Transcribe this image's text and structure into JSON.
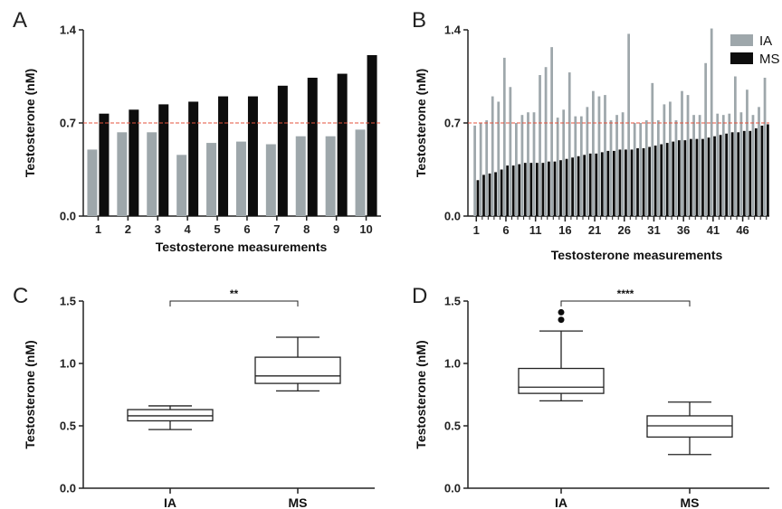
{
  "colors": {
    "ia": "#9ea7ab",
    "ms": "#0d0d0d",
    "ref": "#e5533d",
    "axis": "#222222"
  },
  "chart_data": [
    {
      "panel": "A",
      "type": "bar",
      "xlabel": "Testosterone measurements",
      "ylabel": "Testosterone (nM)",
      "ylim": [
        0,
        1.4
      ],
      "yticks": [
        "0.0",
        "0.7",
        "1.4"
      ],
      "reference_line": 0.7,
      "categories": [
        "1",
        "2",
        "3",
        "4",
        "5",
        "6",
        "7",
        "8",
        "9",
        "10"
      ],
      "series": [
        {
          "name": "IA",
          "values": [
            0.5,
            0.63,
            0.63,
            0.46,
            0.55,
            0.56,
            0.54,
            0.6,
            0.6,
            0.65
          ]
        },
        {
          "name": "MS",
          "values": [
            0.77,
            0.8,
            0.84,
            0.86,
            0.9,
            0.9,
            0.98,
            1.04,
            1.07,
            1.21
          ]
        }
      ]
    },
    {
      "panel": "B",
      "type": "bar",
      "xlabel": "Testosterone measurements",
      "ylabel": "Testosterone (nM)",
      "ylim": [
        0,
        1.4
      ],
      "yticks": [
        "0.0",
        "0.7",
        "1.4"
      ],
      "xticks": [
        "1",
        "6",
        "11",
        "16",
        "21",
        "26",
        "31",
        "36",
        "41",
        "46"
      ],
      "reference_line": 0.7,
      "legend": "top-right",
      "series": [
        {
          "name": "IA",
          "values": [
            0.68,
            0.7,
            0.72,
            0.9,
            0.86,
            1.19,
            0.97,
            0.7,
            0.76,
            0.78,
            0.78,
            1.06,
            1.12,
            1.27,
            0.74,
            0.8,
            1.08,
            0.75,
            0.75,
            0.82,
            0.94,
            0.9,
            0.91,
            0.72,
            0.76,
            0.78,
            1.37,
            0.7,
            0.7,
            0.72,
            1.0,
            0.72,
            0.84,
            0.86,
            0.72,
            0.94,
            0.91,
            0.76,
            0.76,
            1.15,
            1.41,
            0.77,
            0.76,
            0.77,
            1.05,
            0.78,
            0.95,
            0.76,
            0.82,
            1.04
          ]
        },
        {
          "name": "MS",
          "values": [
            0.27,
            0.31,
            0.32,
            0.33,
            0.35,
            0.38,
            0.38,
            0.39,
            0.4,
            0.4,
            0.4,
            0.4,
            0.41,
            0.41,
            0.42,
            0.43,
            0.44,
            0.45,
            0.46,
            0.47,
            0.47,
            0.48,
            0.49,
            0.49,
            0.5,
            0.5,
            0.5,
            0.51,
            0.51,
            0.52,
            0.53,
            0.54,
            0.55,
            0.56,
            0.57,
            0.57,
            0.58,
            0.58,
            0.58,
            0.59,
            0.6,
            0.61,
            0.62,
            0.63,
            0.63,
            0.64,
            0.64,
            0.66,
            0.68,
            0.69
          ]
        }
      ]
    },
    {
      "panel": "C",
      "type": "boxplot",
      "ylabel": "Testosterone (nM)",
      "ylim": [
        0,
        1.5
      ],
      "yticks": [
        "0.0",
        "0.5",
        "1.0",
        "1.5"
      ],
      "categories": [
        "IA",
        "MS"
      ],
      "boxes": [
        {
          "name": "IA",
          "min": 0.47,
          "q1": 0.54,
          "median": 0.58,
          "q3": 0.63,
          "max": 0.66,
          "outliers": []
        },
        {
          "name": "MS",
          "min": 0.78,
          "q1": 0.84,
          "median": 0.9,
          "q3": 1.05,
          "max": 1.21,
          "outliers": []
        }
      ],
      "significance": "**"
    },
    {
      "panel": "D",
      "type": "boxplot",
      "ylabel": "Testosterone (nM)",
      "ylim": [
        0,
        1.5
      ],
      "yticks": [
        "0.0",
        "0.5",
        "1.0",
        "1.5"
      ],
      "categories": [
        "IA",
        "MS"
      ],
      "boxes": [
        {
          "name": "IA",
          "min": 0.7,
          "q1": 0.76,
          "median": 0.81,
          "q3": 0.96,
          "max": 1.26,
          "outliers": [
            1.35,
            1.41
          ]
        },
        {
          "name": "MS",
          "min": 0.27,
          "q1": 0.41,
          "median": 0.5,
          "q3": 0.58,
          "max": 0.69,
          "outliers": []
        }
      ],
      "significance": "****"
    }
  ]
}
